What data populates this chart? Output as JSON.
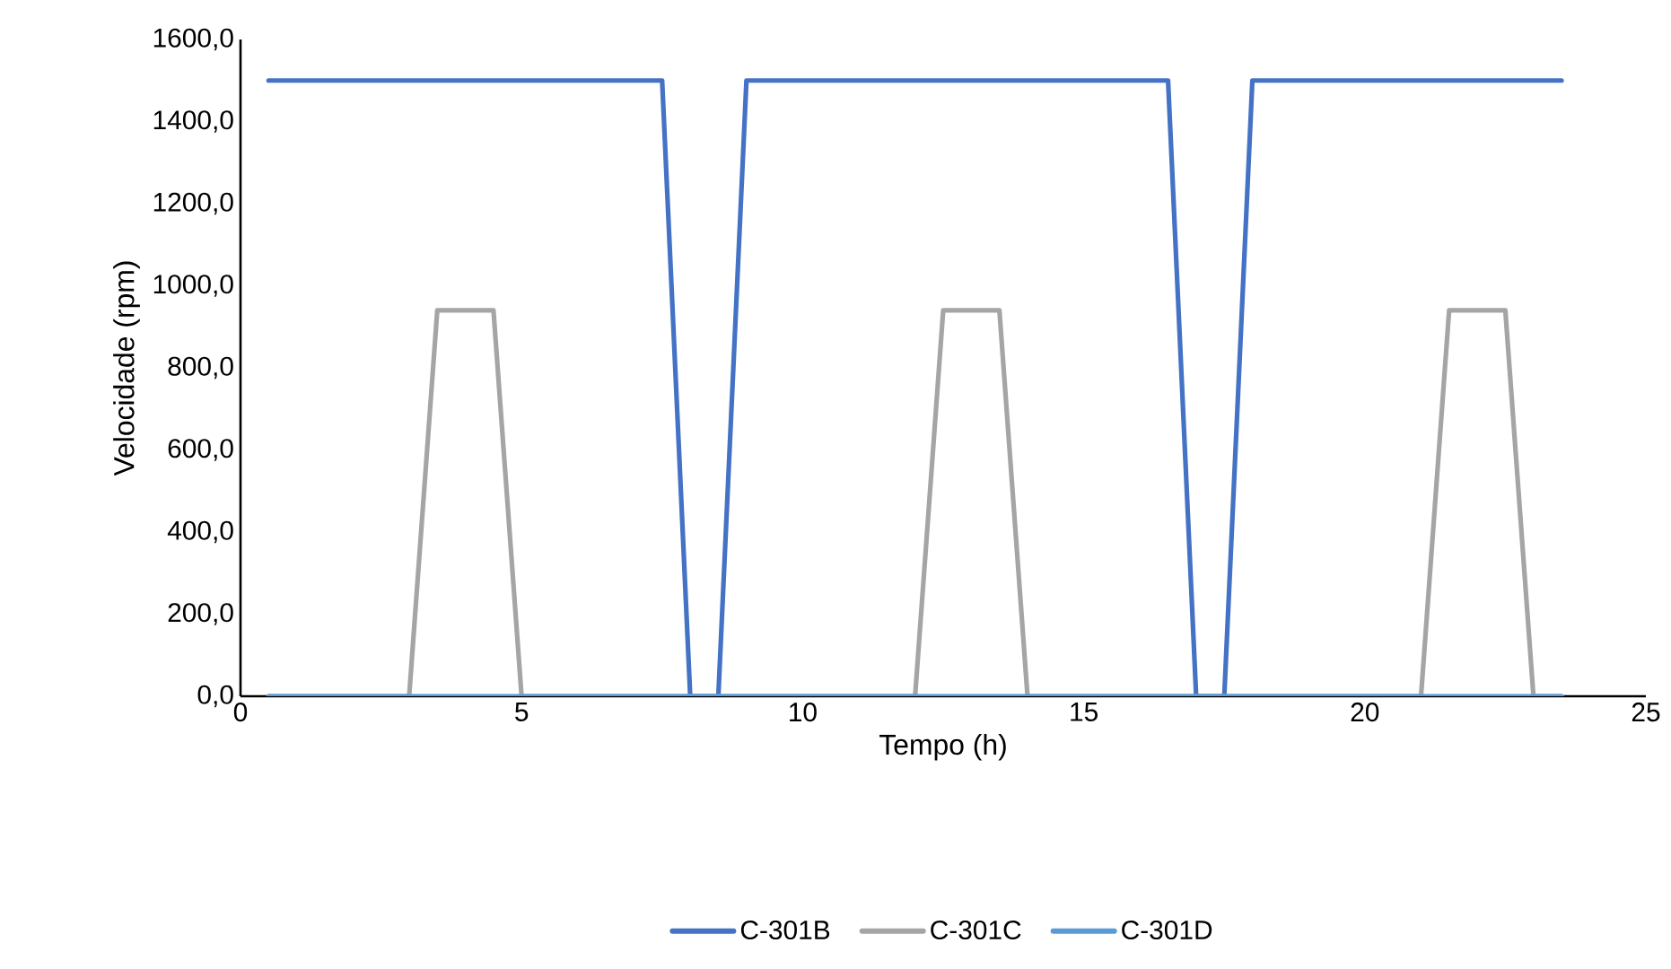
{
  "chart_data": {
    "type": "line",
    "xlabel": "Tempo (h)",
    "ylabel": "Velocidade (rpm)",
    "xlim": [
      0,
      25
    ],
    "xticks": [
      0,
      5,
      10,
      15,
      20,
      25
    ],
    "ylim": [
      0,
      1600
    ],
    "yticks": [
      {
        "value": 0,
        "label": "0,0"
      },
      {
        "value": 200,
        "label": "200,0"
      },
      {
        "value": 400,
        "label": "400,0"
      },
      {
        "value": 600,
        "label": "600,0"
      },
      {
        "value": 800,
        "label": "800,0"
      },
      {
        "value": 1000,
        "label": "1000,0"
      },
      {
        "value": 1200,
        "label": "1200,0"
      },
      {
        "value": 1400,
        "label": "1400,0"
      },
      {
        "value": 1600,
        "label": "1600,0"
      }
    ],
    "grid": false,
    "legend": "bottom",
    "marker": "none",
    "line_style": "solid",
    "series": [
      {
        "name": "C-301B",
        "color": "#4472c4",
        "x": [
          0.5,
          7.5,
          8,
          8.5,
          9,
          16.5,
          17,
          17.5,
          18,
          23.5
        ],
        "values": [
          1500,
          1500,
          0,
          0,
          1500,
          1500,
          0,
          0,
          1500,
          1500
        ]
      },
      {
        "name": "C-301C",
        "color": "#a5a5a5",
        "x": [
          0.5,
          3,
          3.5,
          4.5,
          5,
          12,
          12.5,
          13.5,
          14,
          21,
          21.5,
          22.5,
          23,
          23.5
        ],
        "values": [
          0,
          0,
          940,
          940,
          0,
          0,
          940,
          940,
          0,
          0,
          940,
          940,
          0,
          0
        ]
      },
      {
        "name": "C-301D",
        "color": "#5b9bd5",
        "x": [
          0.5,
          23.5
        ],
        "values": [
          0,
          0
        ]
      }
    ]
  }
}
